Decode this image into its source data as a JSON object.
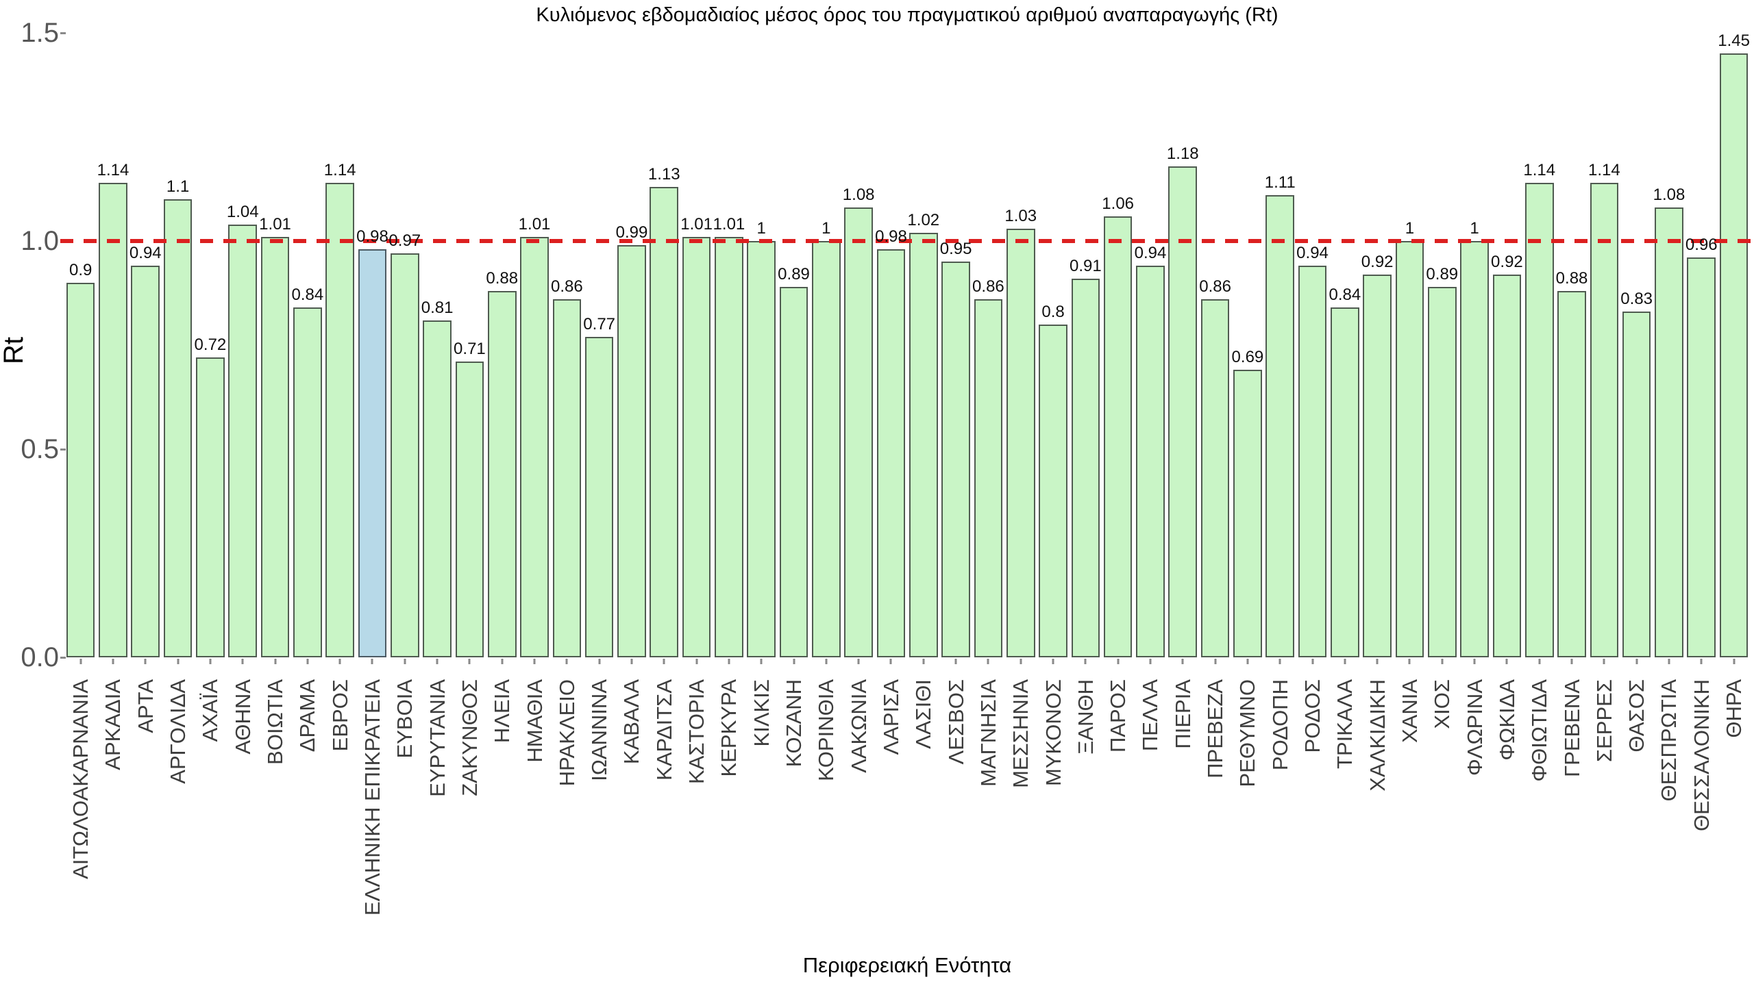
{
  "chart_data": {
    "type": "bar",
    "title": "Κυλιόμενος εβδομαδιαίος μέσος όρος του πραγματικού αριθμού αναπαραγωγής (Rt)",
    "xlabel": "Περιφερειακή Ενότητα",
    "ylabel": "Rt",
    "ylim": [
      0,
      1.5
    ],
    "yticks": [
      0.0,
      0.5,
      1.0,
      1.5
    ],
    "grid": false,
    "legend": "none",
    "reference_line": {
      "y": 1.0,
      "style": "dashed",
      "color": "#dc2020"
    },
    "bar_color": "#c9f5c6",
    "highlight_color": "#b7d9e8",
    "highlight_category": "ΕΛΛΗΝΙΚΗ ΕΠΙΚΡΑΤΕΙΑ",
    "categories": [
      "ΑΙΤΩΛΟΑΚΑΡΝΑΝΙΑ",
      "ΑΡΚΑΔΙΑ",
      "ΑΡΤΑ",
      "ΑΡΓΟΛΙΔΑ",
      "ΑΧΑΪΑ",
      "ΑΘΗΝΑ",
      "ΒΟΙΩΤΙΑ",
      "ΔΡΑΜΑ",
      "ΕΒΡΟΣ",
      "ΕΛΛΗΝΙΚΗ ΕΠΙΚΡΑΤΕΙΑ",
      "ΕΥΒΟΙΑ",
      "ΕΥΡΥΤΑΝΙΑ",
      "ΖΑΚΥΝΘΟΣ",
      "ΗΛΕΙΑ",
      "ΗΜΑΘΙΑ",
      "ΗΡΑΚΛΕΙΟ",
      "ΙΩΑΝΝΙΝΑ",
      "ΚΑΒΑΛΑ",
      "ΚΑΡΔΙΤΣΑ",
      "ΚΑΣΤΟΡΙΑ",
      "ΚΕΡΚΥΡΑ",
      "ΚΙΛΚΙΣ",
      "ΚΟΖΑΝΗ",
      "ΚΟΡΙΝΘΙΑ",
      "ΛΑΚΩΝΙΑ",
      "ΛΑΡΙΣΑ",
      "ΛΑΣΙΘΙ",
      "ΛΕΣΒΟΣ",
      "ΜΑΓΝΗΣΙΑ",
      "ΜΕΣΣΗΝΙΑ",
      "ΜΥΚΟΝΟΣ",
      "ΞΑΝΘΗ",
      "ΠΑΡΟΣ",
      "ΠΕΛΛΑ",
      "ΠΙΕΡΙΑ",
      "ΠΡΕΒΕΖΑ",
      "ΡΕΘΥΜΝΟ",
      "ΡΟΔΟΠΗ",
      "ΡΟΔΟΣ",
      "ΤΡΙΚΑΛΑ",
      "ΧΑΛΚΙΔΙΚΗ",
      "ΧΑΝΙΑ",
      "ΧΙΟΣ",
      "ΦΛΩΡΙΝΑ",
      "ΦΩΚΙΔΑ",
      "ΦΘΙΩΤΙΔΑ",
      "ΓΡΕΒΕΝΑ",
      "ΣΕΡΡΕΣ",
      "ΘΑΣΟΣ",
      "ΘΕΣΠΡΩΤΙΑ",
      "ΘΕΣΣΑΛΟΝΙΚΗ",
      "ΘΗΡΑ"
    ],
    "values": [
      0.9,
      1.14,
      0.94,
      1.1,
      0.72,
      1.04,
      1.01,
      0.84,
      1.14,
      0.98,
      0.97,
      0.81,
      0.71,
      0.88,
      1.01,
      0.86,
      0.77,
      0.99,
      1.13,
      1.01,
      1.01,
      1,
      0.89,
      1,
      1.08,
      0.98,
      1.02,
      0.95,
      0.86,
      1.03,
      0.8,
      0.91,
      1.06,
      0.94,
      1.18,
      0.86,
      0.69,
      1.11,
      0.94,
      0.84,
      0.92,
      1,
      0.89,
      1,
      0.92,
      1.14,
      0.88,
      1.14,
      0.83,
      1.08,
      0.96,
      1.45
    ]
  }
}
